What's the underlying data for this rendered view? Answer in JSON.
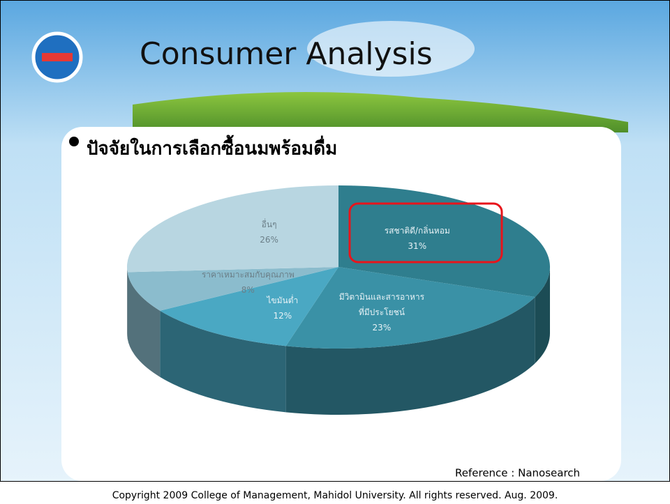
{
  "header": {
    "title": "Consumer Analysis"
  },
  "bullet": "ปัจจัยในการเลือกซื้อนมพร้อมดื่ม",
  "reference": "Reference : Nanosearch",
  "copyright": "Copyright 2009 College of Management, Mahidol University. All rights reserved. Aug. 2009.",
  "chart_data": {
    "type": "pie",
    "categories": [
      "รสชาติดี/กลิ่นหอม",
      "มีวิตามินและสารอาหารที่มีประโยชน์",
      "ไขมันต่ำ",
      "ราคาเหมาะสมกับคุณภาพ",
      "อื่นๆ"
    ],
    "values": [
      31,
      23,
      12,
      8,
      26
    ],
    "value_labels": [
      "31%",
      "23%",
      "12%",
      "8%",
      "26%"
    ],
    "colors": [
      "#2f7e8e",
      "#3a91a6",
      "#4aa8c3",
      "#8bbccd",
      "#b8d6e1"
    ]
  }
}
